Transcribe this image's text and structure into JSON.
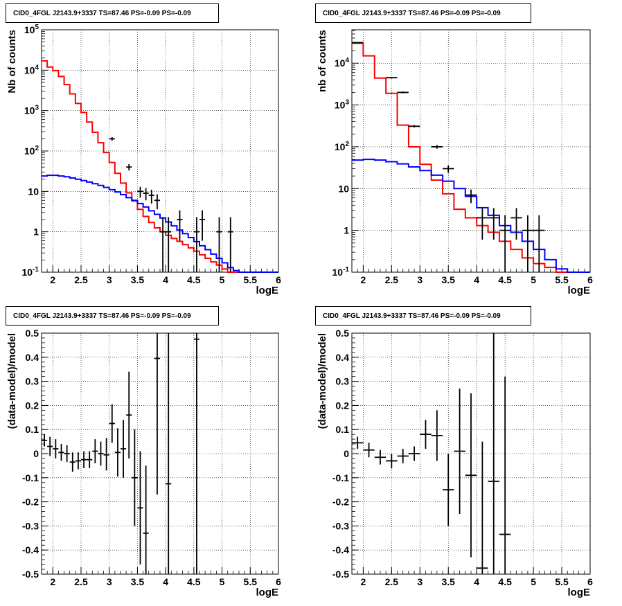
{
  "chart_data": [
    {
      "type": "histogram",
      "title": "CID0_4FGL J2143.9+3337 TS=87.46 PS=-0.09 PS=-0.09",
      "xlabel": "logE",
      "ylabel": "Nb of counts",
      "xlim": [
        1.8,
        6.0
      ],
      "ylim": [
        0.1,
        100000
      ],
      "yscale": "log",
      "grid": true,
      "x_ticks": [
        "2",
        "2.5",
        "3",
        "3.5",
        "4",
        "4.5",
        "5",
        "5.5",
        "6"
      ],
      "y_ticks": [
        "10^-1",
        "1",
        "10",
        "10^2",
        "10^3",
        "10^4",
        "10^5"
      ],
      "bin_edges": [
        1.8,
        1.9,
        2.0,
        2.1,
        2.2,
        2.3,
        2.4,
        2.5,
        2.6,
        2.7,
        2.8,
        2.9,
        3.0,
        3.1,
        3.2,
        3.3,
        3.4,
        3.5,
        3.6,
        3.7,
        3.8,
        3.9,
        4.0,
        4.1,
        4.2,
        4.3,
        4.4,
        4.5,
        4.6,
        4.7,
        4.8,
        4.9,
        5.0,
        5.1,
        5.2,
        5.3,
        5.4,
        5.5,
        5.6,
        5.7,
        5.8,
        5.9,
        6.0
      ],
      "series": [
        {
          "role": "model_total",
          "color": "#ff0000",
          "values": [
            17000,
            12000,
            9800,
            7000,
            4400,
            2600,
            1500,
            900,
            520,
            290,
            160,
            92,
            52,
            28,
            16,
            9.2,
            5.8,
            3.6,
            2.4,
            1.7,
            1.25,
            1.0,
            0.82,
            0.68,
            0.58,
            0.48,
            0.4,
            0.33,
            0.27,
            0.22,
            0.18,
            0.15,
            0.12,
            0.1,
            0.1,
            0.1,
            0.1,
            0.1,
            0.1,
            0.1,
            0.1,
            0.1
          ]
        },
        {
          "role": "model_source",
          "color": "#0000ff",
          "values": [
            24,
            25,
            25,
            24,
            23,
            21.5,
            20,
            18.5,
            17,
            15.5,
            14,
            12.5,
            11,
            9.7,
            8.3,
            7.0,
            6.0,
            5.0,
            4.1,
            3.3,
            2.7,
            2.2,
            1.75,
            1.4,
            1.1,
            0.9,
            0.72,
            0.57,
            0.45,
            0.36,
            0.28,
            0.22,
            0.17,
            0.13,
            0.11,
            0.1,
            0.1,
            0.1,
            0.1,
            0.1,
            0.1,
            0.1
          ]
        }
      ],
      "data_points": [
        {
          "x": 3.05,
          "y": 200,
          "lo": 180,
          "hi": 220
        },
        {
          "x": 3.35,
          "y": 40,
          "lo": 33,
          "hi": 47
        },
        {
          "x": 3.55,
          "y": 10,
          "lo": 7,
          "hi": 13
        },
        {
          "x": 3.65,
          "y": 9,
          "lo": 6,
          "hi": 12
        },
        {
          "x": 3.75,
          "y": 8,
          "lo": 5,
          "hi": 11
        },
        {
          "x": 3.85,
          "y": 6,
          "lo": 3.6,
          "hi": 8.5
        },
        {
          "x": 3.95,
          "y": 1,
          "lo": 0.1,
          "hi": 2.3
        },
        {
          "x": 4.05,
          "y": 1,
          "lo": 0.1,
          "hi": 2.3
        },
        {
          "x": 4.25,
          "y": 2,
          "lo": 0.6,
          "hi": 3.4
        },
        {
          "x": 4.55,
          "y": 1,
          "lo": 0.1,
          "hi": 2.3
        },
        {
          "x": 4.65,
          "y": 2,
          "lo": 0.6,
          "hi": 3.4
        },
        {
          "x": 4.95,
          "y": 1,
          "lo": 0.1,
          "hi": 2.3
        },
        {
          "x": 5.15,
          "y": 1,
          "lo": 0.1,
          "hi": 2.3
        }
      ]
    },
    {
      "type": "histogram",
      "title": "CID0_4FGL J2143.9+3337 TS=87.46 PS=-0.09 PS=-0.09",
      "xlabel": "logE",
      "ylabel": "nb of counts",
      "xlim": [
        1.8,
        6.0
      ],
      "ylim": [
        0.1,
        63000
      ],
      "yscale": "log",
      "grid": true,
      "x_ticks": [
        "2",
        "2.5",
        "3",
        "3.5",
        "4",
        "4.5",
        "5",
        "5.5",
        "6"
      ],
      "y_ticks": [
        "10^-1",
        "1",
        "10",
        "10^2",
        "10^3",
        "10^4"
      ],
      "bin_edges": [
        1.8,
        2.0,
        2.2,
        2.4,
        2.6,
        2.8,
        3.0,
        3.2,
        3.4,
        3.6,
        3.8,
        4.0,
        4.2,
        4.4,
        4.6,
        4.8,
        5.0,
        5.2,
        5.4,
        5.6,
        5.8,
        6.0
      ],
      "series": [
        {
          "role": "model_total",
          "color": "#ff0000",
          "values": [
            30000,
            15000,
            4400,
            1900,
            330,
            100,
            38,
            16,
            7.5,
            3.2,
            2.0,
            1.3,
            0.9,
            0.55,
            0.35,
            0.22,
            0.16,
            0.13,
            0.1,
            0.1,
            0.1
          ]
        },
        {
          "role": "model_source",
          "color": "#0000ff",
          "values": [
            48,
            50,
            48,
            44,
            39,
            33,
            27,
            21,
            15,
            10,
            6.5,
            3.5,
            2.3,
            1.3,
            0.9,
            0.55,
            0.35,
            0.2,
            0.12,
            0.1,
            0.1
          ]
        }
      ],
      "data_points": [
        {
          "x": 1.9,
          "y": 31000,
          "lo": 30000,
          "hi": 32000
        },
        {
          "x": 2.5,
          "y": 4500,
          "lo": 4300,
          "hi": 4700
        },
        {
          "x": 2.7,
          "y": 2000,
          "lo": 1900,
          "hi": 2100
        },
        {
          "x": 2.9,
          "y": 310,
          "lo": 290,
          "hi": 330
        },
        {
          "x": 3.3,
          "y": 100,
          "lo": 90,
          "hi": 110
        },
        {
          "x": 3.5,
          "y": 30,
          "lo": 24,
          "hi": 36
        },
        {
          "x": 3.9,
          "y": 7,
          "lo": 4.5,
          "hi": 9.5
        },
        {
          "x": 4.1,
          "y": 2,
          "lo": 0.6,
          "hi": 3.4
        },
        {
          "x": 4.3,
          "y": 2,
          "lo": 0.6,
          "hi": 3.4
        },
        {
          "x": 4.5,
          "y": 1,
          "lo": 0.1,
          "hi": 2.3
        },
        {
          "x": 4.7,
          "y": 2,
          "lo": 0.6,
          "hi": 3.4
        },
        {
          "x": 4.9,
          "y": 1,
          "lo": 0.1,
          "hi": 2.3
        },
        {
          "x": 5.1,
          "y": 1,
          "lo": 0.1,
          "hi": 2.3
        }
      ]
    },
    {
      "type": "scatter",
      "title": "CID0_4FGL J2143.9+3337 TS=87.46 PS=-0.09 PS=-0.09",
      "xlabel": "logE",
      "ylabel": "(data-model)/model",
      "xlim": [
        1.8,
        6.0
      ],
      "ylim": [
        -0.5,
        0.5
      ],
      "grid": true,
      "x_ticks": [
        "2",
        "2.5",
        "3",
        "3.5",
        "4",
        "4.5",
        "5",
        "5.5",
        "6"
      ],
      "y_ticks": [
        "-0.5",
        "-0.4",
        "-0.3",
        "-0.2",
        "-0.1",
        "0",
        "0.1",
        "0.2",
        "0.3",
        "0.4",
        "0.5"
      ],
      "bin_width": 0.1,
      "points": [
        {
          "x": 1.85,
          "y": 0.055,
          "lo": 0.03,
          "hi": 0.08
        },
        {
          "x": 1.95,
          "y": 0.03,
          "lo": -0.01,
          "hi": 0.07
        },
        {
          "x": 2.05,
          "y": 0.02,
          "lo": -0.02,
          "hi": 0.06
        },
        {
          "x": 2.15,
          "y": 0.005,
          "lo": -0.03,
          "hi": 0.04
        },
        {
          "x": 2.25,
          "y": 0.0,
          "lo": -0.035,
          "hi": 0.035
        },
        {
          "x": 2.35,
          "y": -0.035,
          "lo": -0.075,
          "hi": 0.005
        },
        {
          "x": 2.45,
          "y": -0.03,
          "lo": -0.065,
          "hi": 0.005
        },
        {
          "x": 2.55,
          "y": -0.025,
          "lo": -0.06,
          "hi": 0.01
        },
        {
          "x": 2.65,
          "y": -0.025,
          "lo": -0.06,
          "hi": 0.01
        },
        {
          "x": 2.75,
          "y": 0.01,
          "lo": -0.04,
          "hi": 0.06
        },
        {
          "x": 2.85,
          "y": 0.0,
          "lo": -0.05,
          "hi": 0.05
        },
        {
          "x": 2.95,
          "y": -0.005,
          "lo": -0.07,
          "hi": 0.065
        },
        {
          "x": 3.05,
          "y": 0.125,
          "lo": 0.045,
          "hi": 0.205
        },
        {
          "x": 3.15,
          "y": 0.005,
          "lo": -0.095,
          "hi": 0.105
        },
        {
          "x": 3.25,
          "y": 0.02,
          "lo": -0.1,
          "hi": 0.14
        },
        {
          "x": 3.35,
          "y": 0.16,
          "lo": -0.02,
          "hi": 0.34
        },
        {
          "x": 3.45,
          "y": -0.1,
          "lo": -0.3,
          "hi": 0.1
        },
        {
          "x": 3.55,
          "y": -0.225,
          "lo": -0.46,
          "hi": 0.01
        },
        {
          "x": 3.65,
          "y": -0.33,
          "lo": -0.5,
          "hi": -0.05
        },
        {
          "x": 3.85,
          "y": 0.395,
          "lo": -0.17,
          "hi": 0.5
        },
        {
          "x": 4.05,
          "y": -0.125,
          "lo": -0.5,
          "hi": 0.5
        },
        {
          "x": 4.55,
          "y": 0.475,
          "lo": -0.5,
          "hi": 0.5
        }
      ]
    },
    {
      "type": "scatter",
      "title": "CID0_4FGL J2143.9+3337 TS=87.46 PS=-0.09 PS=-0.09",
      "xlabel": "logE",
      "ylabel": "(data-model)/model",
      "xlim": [
        1.8,
        6.0
      ],
      "ylim": [
        -0.5,
        0.5
      ],
      "grid": true,
      "x_ticks": [
        "2",
        "2.5",
        "3",
        "3.5",
        "4",
        "4.5",
        "5",
        "5.5",
        "6"
      ],
      "y_ticks": [
        "-0.5",
        "-0.4",
        "-0.3",
        "-0.2",
        "-0.1",
        "0",
        "0.1",
        "0.2",
        "0.3",
        "0.4",
        "0.5"
      ],
      "bin_width": 0.2,
      "points": [
        {
          "x": 1.9,
          "y": 0.045,
          "lo": 0.02,
          "hi": 0.07
        },
        {
          "x": 2.1,
          "y": 0.015,
          "lo": -0.015,
          "hi": 0.045
        },
        {
          "x": 2.3,
          "y": -0.015,
          "lo": -0.045,
          "hi": 0.015
        },
        {
          "x": 2.5,
          "y": -0.03,
          "lo": -0.06,
          "hi": 0.0
        },
        {
          "x": 2.7,
          "y": -0.01,
          "lo": -0.04,
          "hi": 0.02
        },
        {
          "x": 2.9,
          "y": 0.0,
          "lo": -0.03,
          "hi": 0.03
        },
        {
          "x": 3.1,
          "y": 0.08,
          "lo": 0.02,
          "hi": 0.14
        },
        {
          "x": 3.3,
          "y": 0.075,
          "lo": -0.03,
          "hi": 0.18
        },
        {
          "x": 3.5,
          "y": -0.15,
          "lo": -0.3,
          "hi": 0.0
        },
        {
          "x": 3.7,
          "y": 0.01,
          "lo": -0.25,
          "hi": 0.27
        },
        {
          "x": 3.9,
          "y": -0.09,
          "lo": -0.43,
          "hi": 0.25
        },
        {
          "x": 4.1,
          "y": -0.475,
          "lo": -0.5,
          "hi": 0.05
        },
        {
          "x": 4.3,
          "y": -0.115,
          "lo": -0.5,
          "hi": 0.5
        },
        {
          "x": 4.5,
          "y": -0.335,
          "lo": -0.5,
          "hi": 0.32
        }
      ]
    }
  ]
}
